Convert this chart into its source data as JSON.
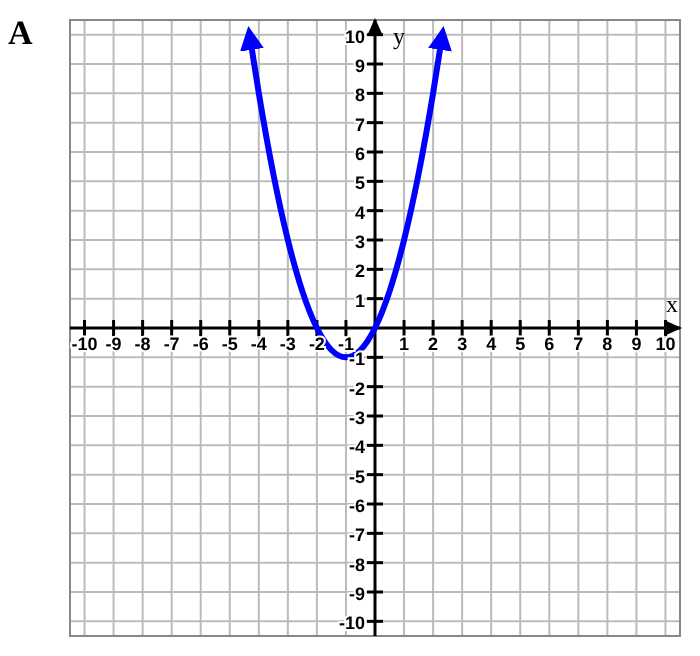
{
  "chart_data": {
    "type": "line",
    "title": "A",
    "xlabel": "x",
    "ylabel": "y",
    "x": [
      -4.3,
      -4,
      -3.5,
      -3,
      -2.5,
      -2,
      -1.5,
      -1,
      -0.5,
      0,
      0.5,
      1,
      1.5,
      2,
      2.3
    ],
    "series": [
      {
        "color": "#0000ff",
        "values": [
          9.89,
          8,
          5.25,
          3,
          1.25,
          0,
          -0.75,
          -1,
          -0.75,
          0,
          1.25,
          3,
          5.25,
          8,
          9.89
        ]
      }
    ],
    "xlim": [
      -10.5,
      10.5
    ],
    "ylim": [
      -10.5,
      10.5
    ],
    "xticks": [
      -10,
      -9,
      -8,
      -7,
      -6,
      -5,
      -4,
      -3,
      -2,
      -1,
      1,
      2,
      3,
      4,
      5,
      6,
      7,
      8,
      9,
      10
    ],
    "yticks": [
      -10,
      -9,
      -8,
      -7,
      -6,
      -5,
      -4,
      -3,
      -2,
      -1,
      1,
      2,
      3,
      4,
      5,
      6,
      7,
      8,
      9,
      10
    ],
    "grid": true,
    "marker": "none",
    "line_style": "solid"
  }
}
